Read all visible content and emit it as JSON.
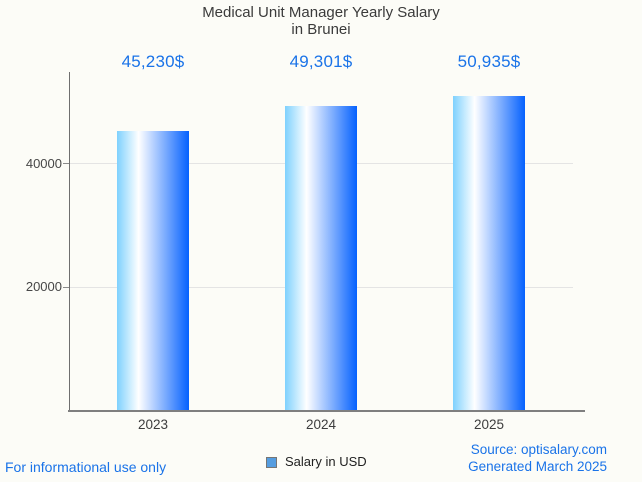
{
  "title": {
    "line1": "Medical Unit Manager Yearly Salary",
    "line2": "in Brunei"
  },
  "chart_data": {
    "type": "bar",
    "title": "Medical Unit Manager Yearly Salary in Brunei",
    "categories": [
      "2023",
      "2024",
      "2025"
    ],
    "values": [
      45230,
      49301,
      50935
    ],
    "value_labels": [
      "45,230$",
      "49,301$",
      "50,935$"
    ],
    "series": [
      {
        "name": "Salary in USD",
        "values": [
          45230,
          49301,
          50935
        ]
      }
    ],
    "xlabel": "",
    "ylabel": "",
    "ylim": [
      0,
      54800
    ],
    "yticks": [
      20000,
      40000
    ],
    "ytick_labels": [
      "20000",
      "40000"
    ],
    "grid": true,
    "legend_position": "bottom"
  },
  "legend": {
    "label": "Salary in USD"
  },
  "footer": {
    "left": "For informational use only",
    "source": "Source: optisalary.com",
    "generated": "Generated March 2025"
  },
  "colors": {
    "value_label_text": "#1a73e8",
    "footer_text": "#1a73e8",
    "title_text": "#3b3b3b",
    "axis_text": "#474747",
    "gridline": "#e4e4e4",
    "axis_line": "#7f7f7f",
    "background": "#fcfcf7",
    "bar_gradient": [
      "#7ed1fe",
      "#ffffff",
      "#0561fe"
    ],
    "legend_marker_fill": "#559de0",
    "legend_marker_border": "#757575"
  }
}
